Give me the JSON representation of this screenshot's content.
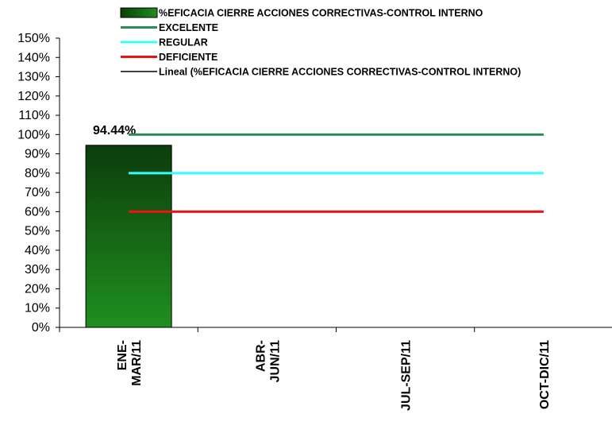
{
  "chart_data": {
    "type": "bar",
    "categories": [
      "ENE-\nMAR/11",
      "ABR-\nJUN/11",
      "JUL-SEP/11",
      "OCT-DIC/11"
    ],
    "ylim": [
      0,
      150
    ],
    "ytick_labels": [
      "0%",
      "10%",
      "20%",
      "30%",
      "40%",
      "50%",
      "60%",
      "70%",
      "80%",
      "90%",
      "100%",
      "110%",
      "120%",
      "130%",
      "140%",
      "150%"
    ],
    "bars": {
      "name": "%EFICACIA CIERRE ACCIONES CORRECTIVAS-CONTROL INTERNO",
      "values": [
        94.44,
        null,
        null,
        null
      ],
      "data_labels": [
        "94.44%",
        "",
        "",
        ""
      ],
      "color": "#1e6e1e"
    },
    "reference_lines": [
      {
        "name": "EXCELENTE",
        "value": 100,
        "color": "#2e8b57"
      },
      {
        "name": "REGULAR",
        "value": 80,
        "color": "#33ffff"
      },
      {
        "name": "DEFICIENTE",
        "value": 60,
        "color": "#ee1111"
      }
    ],
    "trendline": {
      "name": "Lineal (%EFICACIA CIERRE ACCIONES CORRECTIVAS-CONTROL INTERNO)",
      "color": "#000000"
    },
    "legend_position": "top",
    "grid": false
  }
}
